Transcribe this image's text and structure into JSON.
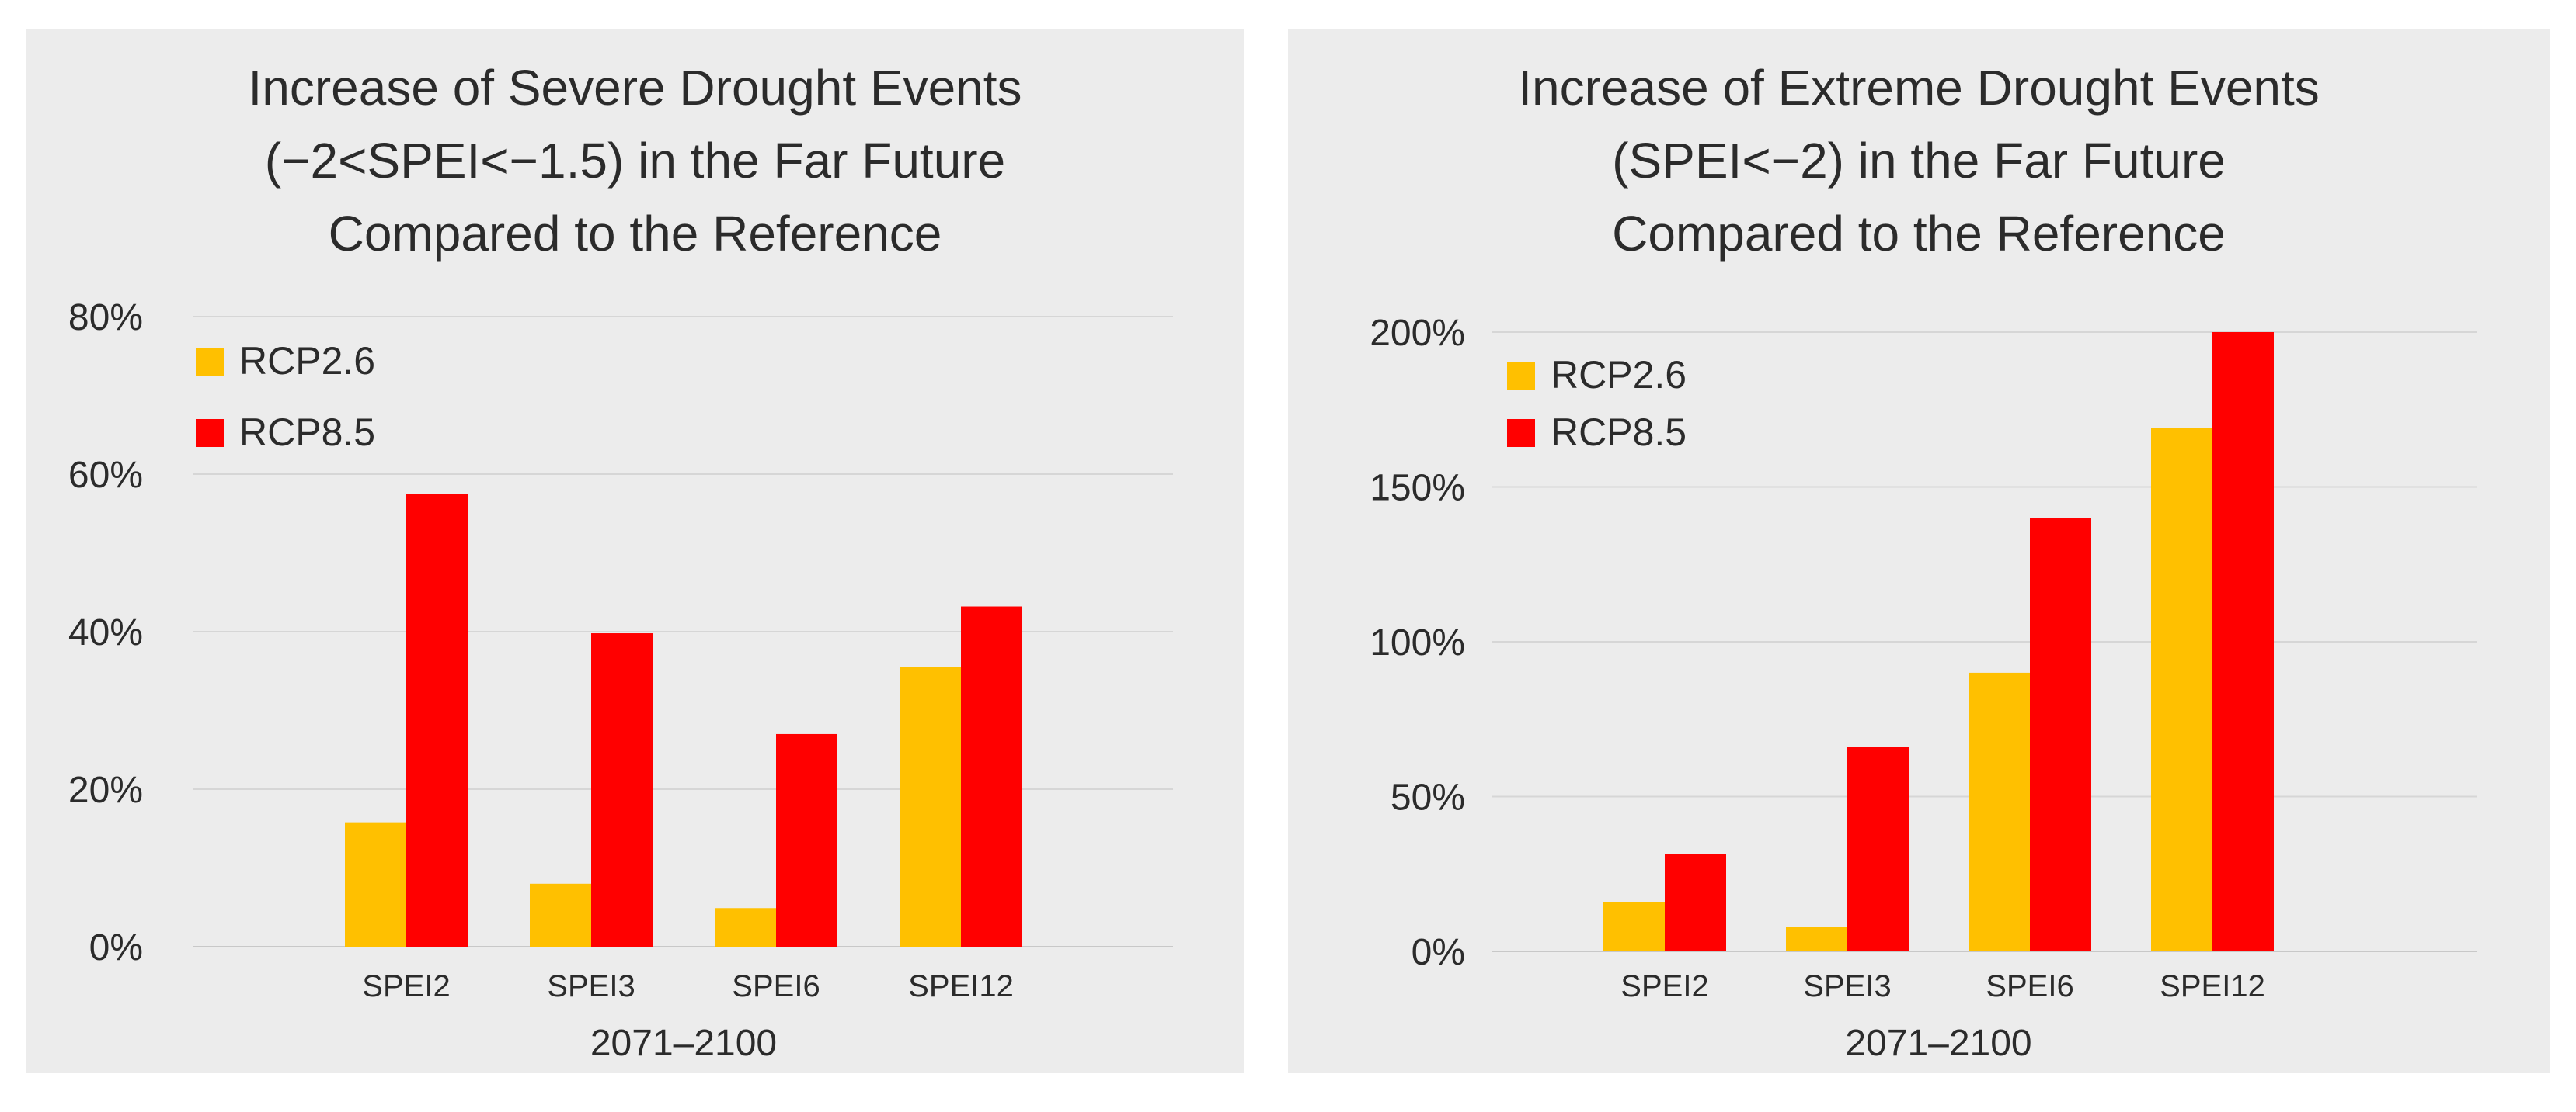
{
  "chart_data": [
    {
      "type": "bar",
      "title_lines": [
        "Increase of Severe Drought Events",
        "(−2<SPEI<−1.5) in the Far Future",
        "Compared to the Reference"
      ],
      "categories": [
        "SPEI2",
        "SPEI3",
        "SPEI6",
        "SPEI12"
      ],
      "series": [
        {
          "name": "RCP2.6",
          "color": "#FFC000",
          "values": [
            15.8,
            8.0,
            4.9,
            35.5
          ]
        },
        {
          "name": "RCP8.5",
          "color": "#FF0000",
          "values": [
            57.5,
            39.8,
            27.0,
            43.2
          ]
        }
      ],
      "xlabel": "2071–2100",
      "ylabel": "",
      "ylim": [
        0,
        80
      ],
      "yticks": [
        0,
        20,
        40,
        60,
        80
      ],
      "ytick_labels": [
        "0%",
        "20%",
        "40%",
        "60%",
        "80%"
      ],
      "grid": true,
      "legend": "top-left"
    },
    {
      "type": "bar",
      "title_lines": [
        "Increase of Extreme Drought Events",
        "(SPEI<−2) in the Far Future",
        "Compared to the Reference"
      ],
      "categories": [
        "SPEI2",
        "SPEI3",
        "SPEI6",
        "SPEI12"
      ],
      "series": [
        {
          "name": "RCP2.6",
          "color": "#FFC000",
          "values": [
            16,
            8,
            90,
            169
          ]
        },
        {
          "name": "RCP8.5",
          "color": "#FF0000",
          "values": [
            31.5,
            66,
            140,
            200
          ]
        }
      ],
      "xlabel": "2071–2100",
      "ylabel": "",
      "ylim": [
        0,
        200
      ],
      "yticks": [
        0,
        50,
        100,
        150,
        200
      ],
      "ytick_labels": [
        "0%",
        "50%",
        "100%",
        "150%",
        "200%"
      ],
      "grid": true,
      "legend": "top-left"
    }
  ]
}
